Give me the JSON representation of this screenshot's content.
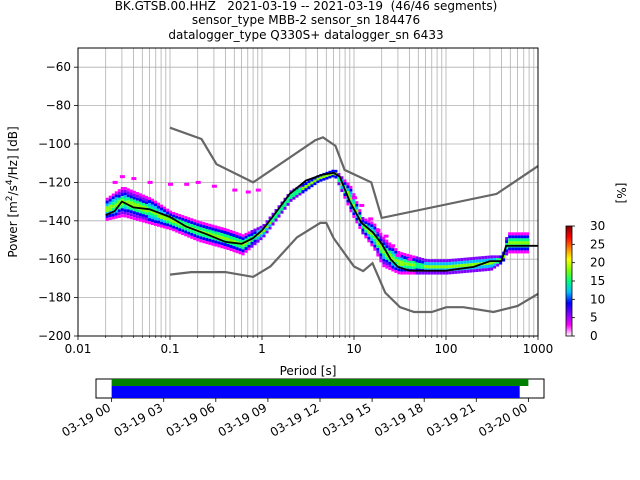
{
  "title": {
    "line1": "BK.GTSB.00.HHZ   2021-03-19 -- 2021-03-19  (46/46 segments)",
    "line2": "sensor_type MBB-2 sensor_sn 184476",
    "line3": "datalogger_type Q330S+ datalogger_sn 6433"
  },
  "colors": {
    "model_lines": "#666666",
    "mean_line": "#000000",
    "coverage_full": "#008000",
    "coverage_data": "#0000ff",
    "colormap": [
      "#ffffff",
      "#ff00ff",
      "#7f00ff",
      "#0000ff",
      "#00bfff",
      "#00ff80",
      "#80ff00",
      "#ffff00",
      "#ff8000",
      "#ff0000",
      "#800000"
    ]
  },
  "chart_data": [
    {
      "type": "heatmap",
      "title": "",
      "xlabel": "Period [s]",
      "ylabel": "Power [m$^2$/s$^4$/Hz] [dB]",
      "xscale": "log",
      "xlim": [
        0.01,
        1000
      ],
      "ylim": [
        -200,
        -50
      ],
      "xticklabels": [
        "0.01",
        "0.1",
        "1",
        "10",
        "100",
        "1000"
      ],
      "yticks": [
        -200,
        -180,
        -160,
        -140,
        -120,
        -100,
        -80,
        -60
      ],
      "grid": true,
      "colorbar": {
        "label": "[%]",
        "range": [
          0,
          30
        ],
        "ticks": [
          0,
          5,
          10,
          15,
          20,
          25,
          30
        ]
      },
      "series": [
        {
          "role": "upper_noise_model",
          "x": [
            0.1,
            0.22,
            0.32,
            0.8,
            3.8,
            4.6,
            6.3,
            7.9,
            15.4,
            20,
            354.8,
            1000
          ],
          "y": [
            -91.5,
            -97.4,
            -110.5,
            -120,
            -98,
            -96.5,
            -101,
            -113.5,
            -120,
            -138.5,
            -126,
            -111.5
          ]
        },
        {
          "role": "lower_noise_model",
          "x": [
            0.1,
            0.17,
            0.4,
            0.8,
            1.24,
            2.4,
            4.3,
            5.0,
            6.0,
            10.0,
            12.6,
            15.9,
            21.9,
            31.6,
            45,
            70,
            101,
            154,
            328,
            600,
            1000
          ],
          "y": [
            -168,
            -166.7,
            -166.7,
            -169.2,
            -163.7,
            -148.6,
            -141.1,
            -141.1,
            -149,
            -163.8,
            -166.2,
            -162.1,
            -177.5,
            -185,
            -187.5,
            -187.5,
            -185,
            -185,
            -187.5,
            -184.4,
            -178
          ]
        },
        {
          "role": "mean",
          "x": [
            0.02,
            0.025,
            0.03,
            0.04,
            0.06,
            0.1,
            0.15,
            0.25,
            0.4,
            0.6,
            0.8,
            1.0,
            1.3,
            2.0,
            3.0,
            4.5,
            6.0,
            7.0,
            9.0,
            12,
            16,
            20,
            25,
            30,
            40,
            60,
            100,
            200,
            300,
            400,
            450,
            500,
            1000
          ],
          "y": [
            -137,
            -135,
            -130,
            -133,
            -134,
            -138,
            -143,
            -147,
            -151,
            -152,
            -149,
            -145,
            -138,
            -126,
            -119,
            -116,
            -115,
            -117,
            -130,
            -141,
            -146,
            -152,
            -160,
            -164,
            -166,
            -166,
            -166,
            -164,
            -161,
            -161,
            -153,
            -153,
            -153
          ]
        }
      ],
      "heatmap_bands": [
        {
          "x": [
            0.02,
            0.03,
            0.06,
            0.1,
            0.2,
            0.4,
            0.6
          ],
          "y_top": [
            -128,
            -122,
            -128,
            -135,
            -140,
            -144,
            -147
          ],
          "y_bottom": [
            -140,
            -138,
            -142,
            -145,
            -151,
            -155,
            -158
          ]
        },
        {
          "x": [
            0.6,
            1.0,
            2.0,
            4.0,
            6.0,
            9.0,
            12,
            16,
            20,
            30,
            60,
            100,
            300,
            400,
            450,
            600,
            800
          ],
          "y_top": [
            -147,
            -142,
            -124,
            -116,
            -113,
            -122,
            -138,
            -141,
            -148,
            -156,
            -160,
            -160,
            -158,
            -158,
            -146,
            -146,
            -146
          ],
          "y_bottom": [
            -158,
            -149,
            -130,
            -120,
            -117,
            -136,
            -147,
            -155,
            -164,
            -168,
            -168,
            -168,
            -166,
            -162,
            -157,
            -157,
            -157
          ]
        }
      ],
      "outliers": {
        "x": [
          0.025,
          0.03,
          0.04,
          0.06,
          0.1,
          0.15,
          0.2,
          0.3,
          0.5,
          0.7,
          0.9,
          10,
          12,
          15,
          18,
          22,
          26,
          30,
          40
        ],
        "y": [
          -120,
          -117,
          -118,
          -120,
          -121,
          -121,
          -120,
          -122,
          -124,
          -125,
          -124,
          -128,
          -132,
          -139,
          -145,
          -148,
          -153,
          -158,
          -160
        ]
      }
    },
    {
      "type": "bar",
      "title": "",
      "xlabel": "",
      "ylabel": "",
      "xtype": "time",
      "xlim": [
        "2021-03-18T23:06",
        "2021-03-20T00:54"
      ],
      "xticklabels": [
        "03-19 00",
        "03-19 03",
        "03-19 06",
        "03-19 09",
        "03-19 12",
        "03-19 15",
        "03-19 18",
        "03-19 21",
        "03-20 00"
      ],
      "series": [
        {
          "role": "full_range",
          "start": "2021-03-19T00:00",
          "end": "2021-03-20T00:00"
        },
        {
          "role": "data_coverage",
          "start": "2021-03-19T00:00",
          "end": "2021-03-19T23:30"
        }
      ]
    }
  ]
}
